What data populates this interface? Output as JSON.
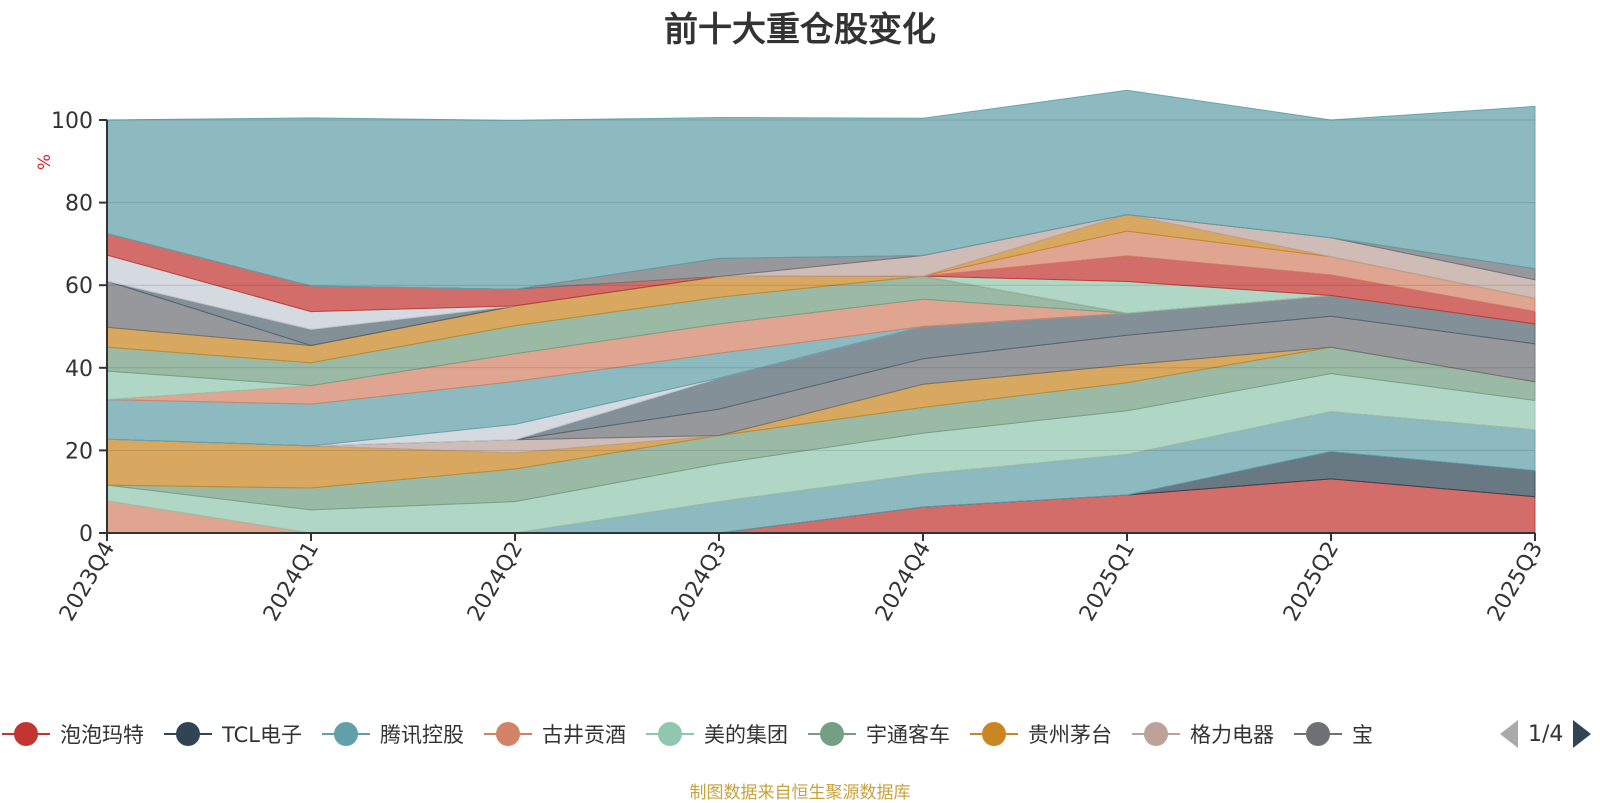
{
  "chart_data": {
    "type": "area",
    "title": "前十大重仓股变化",
    "ylabel": "%",
    "xlabel": "",
    "ylim": [
      0,
      100
    ],
    "yticks": [
      "0",
      "20",
      "40",
      "60",
      "80",
      "100"
    ],
    "categories": [
      "2023Q4",
      "2024Q1",
      "2024Q2",
      "2024Q3",
      "2024Q4",
      "2025Q1",
      "2025Q2",
      "2025Q3"
    ],
    "stacked": true,
    "grid": true,
    "legend_position": "bottom",
    "series": [
      {
        "name": "泡泡玛特",
        "color": "#c23531",
        "values": [
          0,
          0,
          0,
          0,
          6.3,
          9.2,
          13.1,
          8.8
        ]
      },
      {
        "name": "TCL电子",
        "color": "#2f4554",
        "values": [
          0,
          0,
          0,
          0,
          0,
          0,
          6.6,
          6.3
        ]
      },
      {
        "name": "腾讯控股",
        "color": "#61a0a8",
        "values": [
          0,
          0,
          0,
          7.6,
          8.0,
          9.8,
          9.7,
          9.9
        ]
      },
      {
        "name": "古井贡酒",
        "color": "#d48265",
        "values": [
          7.8,
          0,
          0,
          0,
          0,
          0,
          0,
          0
        ]
      },
      {
        "name": "美的集团",
        "color": "#91c7ae",
        "values": [
          3.8,
          5.6,
          7.6,
          9.2,
          9.9,
          10.6,
          9.2,
          7.1
        ]
      },
      {
        "name": "宇通客车",
        "color": "#749f83",
        "values": [
          0,
          5.3,
          7.9,
          6.8,
          6.2,
          6.8,
          6.4,
          4.5
        ]
      },
      {
        "name": "贵州茅台",
        "color": "#ca8622",
        "values": [
          11.1,
          10.2,
          3.9,
          0,
          5.6,
          4.3,
          0,
          0
        ]
      },
      {
        "name": "格力电器",
        "color": "#bda29a",
        "values": [
          0,
          0,
          3.2,
          0,
          0,
          0,
          0,
          0
        ]
      },
      {
        "name": "宝",
        "color": "#6e7074",
        "values": [
          0,
          0,
          0,
          6.4,
          6.2,
          7.2,
          7.5,
          9.2
        ]
      },
      {
        "name": "",
        "color": "#546570",
        "values": [
          0,
          0,
          0,
          7.5,
          7.8,
          5.3,
          5.0,
          4.8
        ]
      },
      {
        "name": "",
        "color": "#c4ccd3",
        "values": [
          0,
          0,
          3.7,
          0,
          0,
          0,
          0,
          0
        ]
      },
      {
        "name": "",
        "color": "#61a0a8",
        "values": [
          9.6,
          10.1,
          10.4,
          6.0,
          0,
          0,
          0,
          0
        ]
      },
      {
        "name": "",
        "color": "#d48265",
        "values": [
          0,
          4.5,
          6.7,
          7.1,
          6.6,
          0,
          0,
          0
        ]
      },
      {
        "name": "",
        "color": "#91c7ae",
        "values": [
          6.9,
          0,
          0,
          0,
          0,
          0,
          0,
          0
        ]
      },
      {
        "name": "",
        "color": "#749f83",
        "values": [
          5.8,
          5.5,
          6.8,
          6.5,
          5.6,
          0,
          0,
          0
        ]
      },
      {
        "name": "",
        "color": "#ca8622",
        "values": [
          4.8,
          4.2,
          4.8,
          5.0,
          0,
          0,
          0,
          0
        ]
      },
      {
        "name": "",
        "color": "#6e7074",
        "values": [
          11.2,
          0,
          0,
          0,
          0,
          0,
          0,
          0
        ]
      },
      {
        "name": "",
        "color": "#546570",
        "values": [
          0,
          3.9,
          0,
          0,
          0,
          0,
          0,
          0
        ]
      },
      {
        "name": "",
        "color": "#c4ccd3",
        "values": [
          6.3,
          4.3,
          0,
          0,
          0,
          0,
          0,
          0
        ]
      },
      {
        "name": "",
        "color": "#c23531",
        "values": [
          5.2,
          6.2,
          4.0,
          0,
          0,
          0,
          0,
          0
        ]
      },
      {
        "name": "",
        "color": "#91c7ae",
        "values": [
          0,
          0,
          0,
          0,
          0,
          7.7,
          0,
          0
        ]
      },
      {
        "name": "",
        "color": "#c23531",
        "values": [
          0,
          0,
          0,
          0,
          0,
          6.2,
          5.0,
          3.0
        ]
      },
      {
        "name": "",
        "color": "#d48265",
        "values": [
          0,
          0,
          0,
          0,
          0,
          6.0,
          4.4,
          3.2
        ]
      },
      {
        "name": "",
        "color": "#ca8622",
        "values": [
          0,
          0,
          0,
          0,
          0,
          4.0,
          0,
          0
        ]
      },
      {
        "name": "",
        "color": "#bda29a",
        "values": [
          0,
          0,
          0,
          0,
          5.0,
          0,
          4.6,
          4.5
        ]
      },
      {
        "name": "",
        "color": "#6e7074",
        "values": [
          0,
          0,
          0,
          4.4,
          0,
          0,
          0,
          2.7
        ]
      },
      {
        "name": "",
        "color": "#61a0a8",
        "values": [
          27.5,
          40.7,
          40.9,
          34.1,
          33.2,
          30.1,
          28.5,
          39.3
        ]
      }
    ]
  },
  "legend": {
    "items": [
      {
        "label": "泡泡玛特",
        "color": "#c23531"
      },
      {
        "label": "TCL电子",
        "color": "#2f4554"
      },
      {
        "label": "腾讯控股",
        "color": "#61a0a8"
      },
      {
        "label": "古井贡酒",
        "color": "#d48265"
      },
      {
        "label": "美的集团",
        "color": "#91c7ae"
      },
      {
        "label": "宇通客车",
        "color": "#749f83"
      },
      {
        "label": "贵州茅台",
        "color": "#ca8622"
      },
      {
        "label": "格力电器",
        "color": "#bda29a"
      },
      {
        "label": "宝",
        "color": "#6e7074"
      }
    ],
    "page": "1/4"
  },
  "source_note": "制图数据来自恒生聚源数据库"
}
